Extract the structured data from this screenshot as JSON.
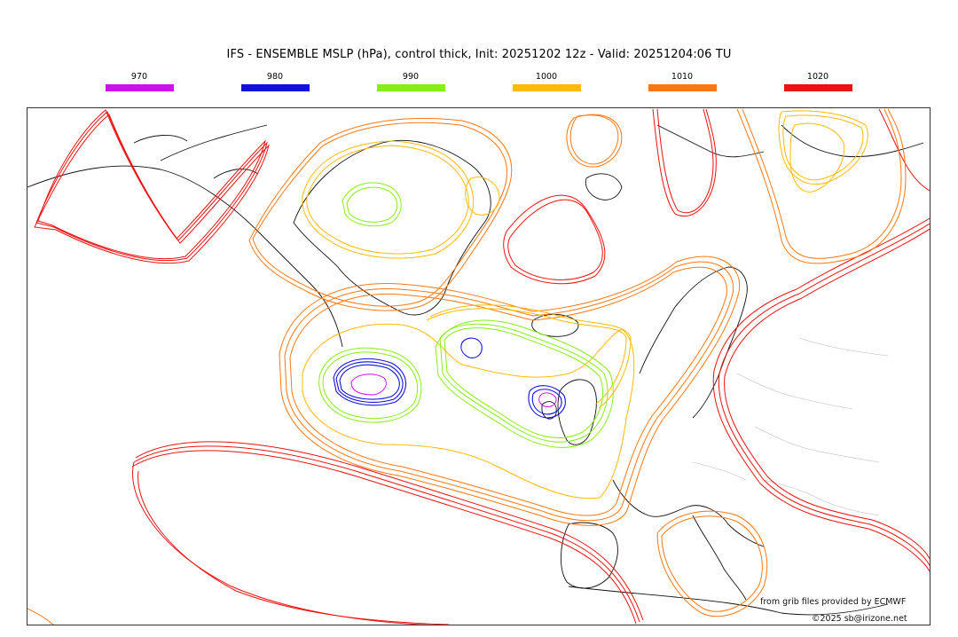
{
  "header": {
    "title": "IFS - ENSEMBLE MSLP (hPa), control thick, Init: 20251202 12z - Valid: 20251204:06 TU"
  },
  "legend": [
    {
      "label": "970",
      "color": "#cc11ee"
    },
    {
      "label": "980",
      "color": "#1111dd"
    },
    {
      "label": "990",
      "color": "#88ee11"
    },
    {
      "label": "1000",
      "color": "#ffbb00"
    },
    {
      "label": "1010",
      "color": "#ff7711"
    },
    {
      "label": "1020",
      "color": "#ee1111"
    }
  ],
  "map": {
    "credit_source": "from grib files provided by ECMWF",
    "copyright": "©2025 sb@irizone.net"
  }
}
